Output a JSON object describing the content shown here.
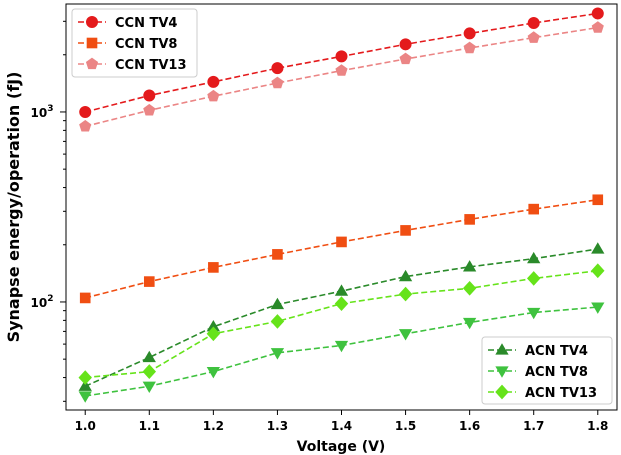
{
  "chart_data": {
    "type": "line",
    "title": "",
    "xlabel": "Voltage (V)",
    "ylabel": "Synapse energy/operation (fJ)",
    "yscale": "log",
    "xlim": [
      0.97,
      1.83
    ],
    "ylim": [
      27,
      3700
    ],
    "x": [
      1.0,
      1.1,
      1.2,
      1.3,
      1.4,
      1.5,
      1.6,
      1.7,
      1.8
    ],
    "x_tick_labels": [
      "1.0",
      "1.1",
      "1.2",
      "1.3",
      "1.4",
      "1.5",
      "1.6",
      "1.7",
      "1.8"
    ],
    "y_major_ticks": [
      {
        "value": 100,
        "base": "10",
        "exp": "2"
      },
      {
        "value": 1000,
        "base": "10",
        "exp": "3"
      }
    ],
    "legends": [
      {
        "position": "upper-left",
        "series": [
          "CCN TV4",
          "CCN TV8",
          "CCN TV13"
        ]
      },
      {
        "position": "lower-right",
        "series": [
          "ACN TV4",
          "ACN TV8",
          "ACN TV13"
        ]
      }
    ],
    "series": [
      {
        "name": "CCN TV4",
        "color": "#e41a1c",
        "marker": "circle",
        "values": [
          1000,
          1220,
          1440,
          1700,
          1960,
          2270,
          2590,
          2940,
          3300
        ]
      },
      {
        "name": "CCN TV8",
        "color": "#f04e12",
        "marker": "square",
        "values": [
          105,
          128,
          152,
          178,
          207,
          238,
          272,
          308,
          345
        ]
      },
      {
        "name": "CCN TV13",
        "color": "#eb8585",
        "marker": "pentagon",
        "values": [
          840,
          1020,
          1210,
          1420,
          1650,
          1900,
          2170,
          2460,
          2780
        ]
      },
      {
        "name": "ACN TV4",
        "color": "#2a8a2a",
        "marker": "triangle-up",
        "values": [
          36,
          51,
          74,
          97,
          114,
          136,
          153,
          169,
          190
        ]
      },
      {
        "name": "ACN TV8",
        "color": "#3fc23f",
        "marker": "triangle-down",
        "values": [
          32,
          36,
          43,
          54,
          59,
          68,
          78,
          88,
          94
        ]
      },
      {
        "name": "ACN TV13",
        "color": "#66e31a",
        "marker": "diamond",
        "values": [
          40,
          43,
          68,
          79,
          98,
          110,
          118,
          133,
          146
        ]
      }
    ]
  }
}
